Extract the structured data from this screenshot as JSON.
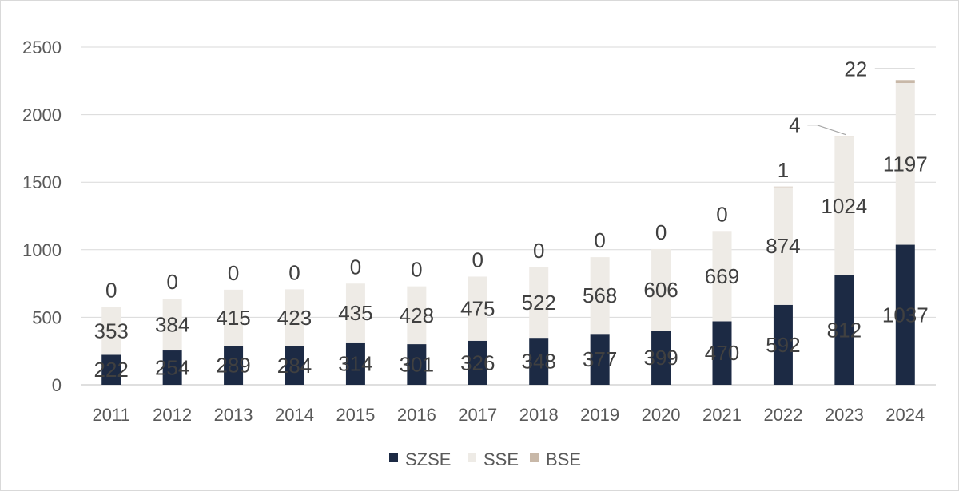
{
  "chart_data": {
    "type": "bar",
    "stacked": true,
    "categories": [
      "2011",
      "2012",
      "2013",
      "2014",
      "2015",
      "2016",
      "2017",
      "2018",
      "2019",
      "2020",
      "2021",
      "2022",
      "2023",
      "2024"
    ],
    "series": [
      {
        "name": "SZSE",
        "color": "#1c2a44",
        "values": [
          222,
          254,
          289,
          284,
          314,
          301,
          326,
          348,
          377,
          399,
          470,
          592,
          812,
          1037
        ]
      },
      {
        "name": "SSE",
        "color": "#eeebe6",
        "values": [
          353,
          384,
          415,
          423,
          435,
          428,
          475,
          522,
          568,
          606,
          669,
          874,
          1024,
          1197
        ]
      },
      {
        "name": "BSE",
        "color": "#c8b8a8",
        "values": [
          0,
          0,
          0,
          0,
          0,
          0,
          0,
          0,
          0,
          0,
          0,
          1,
          4,
          22
        ]
      }
    ],
    "ylim": [
      0,
      2500
    ],
    "yticks": [
      0,
      500,
      1000,
      1500,
      2000,
      2500
    ],
    "grid": true,
    "legend_position": "bottom"
  }
}
